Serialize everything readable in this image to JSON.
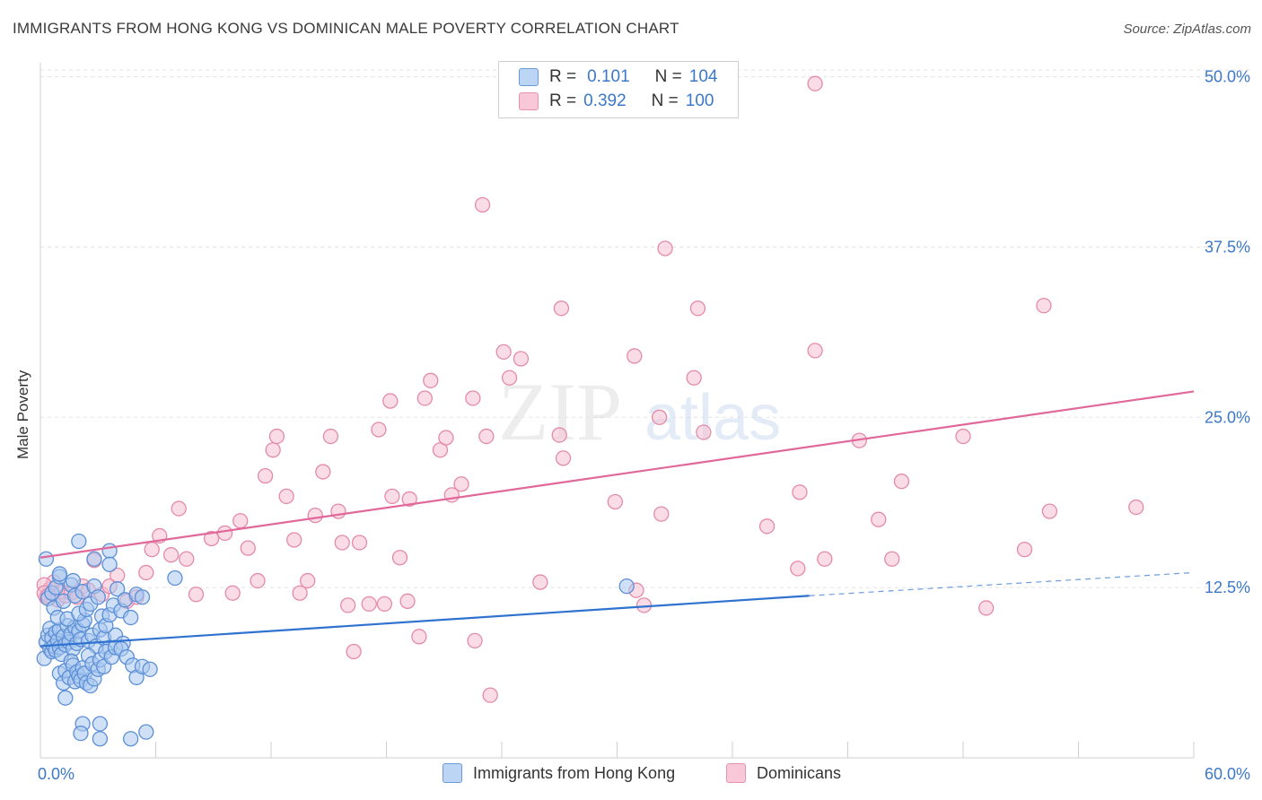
{
  "title": "IMMIGRANTS FROM HONG KONG VS DOMINICAN MALE POVERTY CORRELATION CHART",
  "source": "Source: ZipAtlas.com",
  "watermark": {
    "part1": "ZIP",
    "part2": "atlas"
  },
  "legend": {
    "rows": [
      {
        "r_label": "R =",
        "r_value": "0.101",
        "n_label": "N =",
        "n_value": "104"
      },
      {
        "r_label": "R =",
        "r_value": "0.392",
        "n_label": "N =",
        "n_value": "100"
      }
    ]
  },
  "bottom_legend": [
    "Immigrants from Hong Kong",
    "Dominicans"
  ],
  "colors": {
    "blue_fill": "#a9c8f0",
    "blue_stroke": "#5b8fd6",
    "blue_line": "#2f72cf",
    "pink_fill": "#f6bfd2",
    "pink_stroke": "#e48aa9",
    "pink_line": "#e0689a",
    "axis_text": "#3b78c7",
    "grid": "#e3e3e3"
  },
  "chart_data": {
    "type": "scatter",
    "title": "IMMIGRANTS FROM HONG KONG VS DOMINICAN MALE POVERTY CORRELATION CHART",
    "xlabel": "",
    "ylabel": "Male Poverty",
    "xlim": [
      0,
      60
    ],
    "ylim": [
      0,
      50.5
    ],
    "x_tick_labels": [
      "0.0%",
      "60.0%"
    ],
    "y_ticks": [
      12.5,
      25.0,
      37.5,
      50.0
    ],
    "y_tick_labels": [
      "12.5%",
      "25.0%",
      "37.5%",
      "50.0%"
    ],
    "grid": true,
    "series": [
      {
        "name": "Immigrants from Hong Kong",
        "r": 0.101,
        "n": 104,
        "trend": {
          "x0": 0,
          "y0": 8.2,
          "x1": 40,
          "y1": 11.9,
          "dash_x1": 60,
          "dash_y1": 13.6
        },
        "points": [
          [
            0.2,
            7.3
          ],
          [
            0.3,
            8.5
          ],
          [
            0.4,
            9.0
          ],
          [
            0.5,
            8.0
          ],
          [
            0.5,
            9.5
          ],
          [
            0.6,
            7.8
          ],
          [
            0.6,
            8.8
          ],
          [
            0.7,
            8.2
          ],
          [
            0.8,
            9.2
          ],
          [
            0.8,
            7.9
          ],
          [
            0.9,
            8.6
          ],
          [
            1.0,
            8.1
          ],
          [
            1.0,
            9.4
          ],
          [
            1.1,
            7.6
          ],
          [
            1.2,
            8.9
          ],
          [
            1.3,
            8.3
          ],
          [
            1.4,
            9.7
          ],
          [
            1.5,
            8.5
          ],
          [
            1.6,
            9.1
          ],
          [
            1.7,
            8.0
          ],
          [
            1.8,
            9.6
          ],
          [
            1.9,
            8.4
          ],
          [
            2.0,
            9.3
          ],
          [
            2.1,
            8.7
          ],
          [
            2.2,
            9.8
          ],
          [
            2.3,
            10.1
          ],
          [
            2.5,
            8.6
          ],
          [
            2.7,
            9.0
          ],
          [
            2.9,
            8.2
          ],
          [
            3.1,
            9.4
          ],
          [
            3.3,
            8.8
          ],
          [
            3.6,
            8.1
          ],
          [
            3.9,
            9.0
          ],
          [
            4.3,
            8.4
          ],
          [
            1.0,
            6.2
          ],
          [
            1.2,
            5.5
          ],
          [
            1.3,
            6.4
          ],
          [
            1.5,
            5.9
          ],
          [
            1.6,
            7.1
          ],
          [
            1.7,
            6.8
          ],
          [
            1.8,
            5.6
          ],
          [
            1.9,
            6.3
          ],
          [
            2.0,
            6.0
          ],
          [
            2.1,
            5.7
          ],
          [
            2.2,
            6.6
          ],
          [
            2.3,
            6.2
          ],
          [
            2.4,
            5.5
          ],
          [
            2.5,
            7.5
          ],
          [
            2.6,
            5.3
          ],
          [
            2.7,
            6.9
          ],
          [
            2.8,
            5.8
          ],
          [
            3.0,
            6.5
          ],
          [
            3.1,
            7.2
          ],
          [
            3.3,
            6.7
          ],
          [
            3.4,
            7.8
          ],
          [
            3.7,
            7.4
          ],
          [
            3.9,
            8.1
          ],
          [
            4.2,
            8.0
          ],
          [
            4.5,
            7.4
          ],
          [
            4.8,
            6.8
          ],
          [
            5.0,
            5.9
          ],
          [
            5.3,
            6.7
          ],
          [
            5.7,
            6.5
          ],
          [
            0.4,
            11.7
          ],
          [
            0.6,
            12.1
          ],
          [
            0.7,
            11.0
          ],
          [
            0.8,
            12.5
          ],
          [
            0.9,
            10.3
          ],
          [
            1.0,
            13.3
          ],
          [
            1.2,
            11.5
          ],
          [
            1.4,
            10.2
          ],
          [
            1.6,
            12.7
          ],
          [
            1.8,
            11.9
          ],
          [
            2.0,
            10.6
          ],
          [
            2.2,
            12.2
          ],
          [
            2.4,
            10.9
          ],
          [
            2.6,
            11.3
          ],
          [
            2.8,
            12.6
          ],
          [
            3.0,
            11.8
          ],
          [
            3.2,
            10.4
          ],
          [
            3.4,
            9.7
          ],
          [
            3.6,
            10.5
          ],
          [
            3.8,
            11.2
          ],
          [
            4.0,
            12.4
          ],
          [
            4.2,
            10.8
          ],
          [
            4.4,
            11.6
          ],
          [
            4.7,
            10.3
          ],
          [
            5.0,
            12.0
          ],
          [
            5.3,
            11.8
          ],
          [
            0.3,
            14.6
          ],
          [
            1.0,
            13.5
          ],
          [
            1.7,
            13.0
          ],
          [
            2.0,
            15.9
          ],
          [
            2.8,
            14.6
          ],
          [
            3.6,
            15.2
          ],
          [
            3.6,
            14.2
          ],
          [
            7.0,
            13.2
          ],
          [
            1.3,
            4.4
          ],
          [
            2.2,
            2.5
          ],
          [
            3.1,
            2.5
          ],
          [
            2.1,
            1.8
          ],
          [
            3.1,
            1.4
          ],
          [
            4.7,
            1.4
          ],
          [
            5.5,
            1.9
          ],
          [
            30.5,
            12.6
          ]
        ]
      },
      {
        "name": "Dominicans",
        "r": 0.392,
        "n": 100,
        "trend": {
          "x0": 0,
          "y0": 14.7,
          "x1": 60,
          "y1": 26.9
        },
        "points": [
          [
            0.3,
            11.8
          ],
          [
            0.5,
            12.4
          ],
          [
            0.7,
            12.9
          ],
          [
            0.9,
            11.6
          ],
          [
            1.1,
            12.2
          ],
          [
            1.3,
            11.9
          ],
          [
            1.6,
            12.1
          ],
          [
            1.9,
            11.8
          ],
          [
            2.2,
            12.6
          ],
          [
            2.5,
            12.3
          ],
          [
            2.8,
            14.5
          ],
          [
            3.2,
            12.0
          ],
          [
            3.6,
            12.6
          ],
          [
            4.0,
            13.4
          ],
          [
            4.5,
            11.5
          ],
          [
            5.0,
            11.8
          ],
          [
            5.5,
            13.6
          ],
          [
            5.8,
            15.3
          ],
          [
            6.2,
            16.3
          ],
          [
            6.8,
            14.9
          ],
          [
            7.2,
            18.3
          ],
          [
            7.6,
            14.6
          ],
          [
            8.1,
            12.0
          ],
          [
            8.9,
            16.1
          ],
          [
            9.6,
            16.5
          ],
          [
            10.0,
            12.1
          ],
          [
            10.4,
            17.4
          ],
          [
            10.8,
            15.4
          ],
          [
            11.3,
            13.0
          ],
          [
            11.7,
            20.7
          ],
          [
            12.1,
            22.6
          ],
          [
            12.3,
            23.6
          ],
          [
            12.8,
            19.2
          ],
          [
            13.2,
            16.0
          ],
          [
            13.5,
            12.1
          ],
          [
            13.9,
            13.0
          ],
          [
            14.3,
            17.8
          ],
          [
            14.7,
            21.0
          ],
          [
            15.1,
            23.6
          ],
          [
            15.5,
            18.1
          ],
          [
            15.7,
            15.8
          ],
          [
            16.0,
            11.2
          ],
          [
            16.3,
            7.8
          ],
          [
            16.6,
            15.8
          ],
          [
            17.1,
            11.3
          ],
          [
            17.6,
            24.1
          ],
          [
            17.9,
            11.3
          ],
          [
            18.2,
            26.2
          ],
          [
            18.3,
            19.2
          ],
          [
            18.7,
            14.7
          ],
          [
            19.1,
            11.5
          ],
          [
            19.2,
            19.0
          ],
          [
            19.7,
            8.9
          ],
          [
            20.0,
            26.4
          ],
          [
            20.3,
            27.7
          ],
          [
            20.8,
            22.6
          ],
          [
            21.1,
            23.5
          ],
          [
            21.4,
            19.3
          ],
          [
            21.9,
            20.1
          ],
          [
            22.5,
            26.4
          ],
          [
            22.6,
            8.6
          ],
          [
            23.2,
            23.6
          ],
          [
            23.4,
            4.6
          ],
          [
            24.1,
            29.8
          ],
          [
            24.4,
            27.9
          ],
          [
            25.0,
            29.3
          ],
          [
            26.0,
            12.9
          ],
          [
            27.0,
            23.7
          ],
          [
            27.1,
            33.0
          ],
          [
            27.2,
            22.0
          ],
          [
            29.9,
            18.8
          ],
          [
            30.9,
            29.5
          ],
          [
            31.0,
            12.3
          ],
          [
            31.4,
            11.2
          ],
          [
            32.2,
            25.0
          ],
          [
            32.3,
            17.9
          ],
          [
            32.5,
            37.4
          ],
          [
            34.0,
            27.9
          ],
          [
            34.2,
            33.0
          ],
          [
            34.5,
            23.9
          ],
          [
            37.8,
            17.0
          ],
          [
            39.4,
            13.9
          ],
          [
            39.5,
            19.5
          ],
          [
            40.3,
            49.5
          ],
          [
            40.3,
            29.9
          ],
          [
            40.8,
            14.6
          ],
          [
            42.6,
            23.3
          ],
          [
            43.6,
            17.5
          ],
          [
            44.3,
            14.6
          ],
          [
            44.8,
            20.3
          ],
          [
            48.0,
            23.6
          ],
          [
            49.2,
            11.0
          ],
          [
            51.2,
            15.3
          ],
          [
            52.2,
            33.2
          ],
          [
            52.5,
            18.1
          ],
          [
            57.0,
            18.4
          ],
          [
            0.2,
            12.7
          ],
          [
            0.2,
            12.1
          ],
          [
            0.4,
            11.9
          ],
          [
            23.0,
            40.6
          ]
        ]
      }
    ]
  }
}
